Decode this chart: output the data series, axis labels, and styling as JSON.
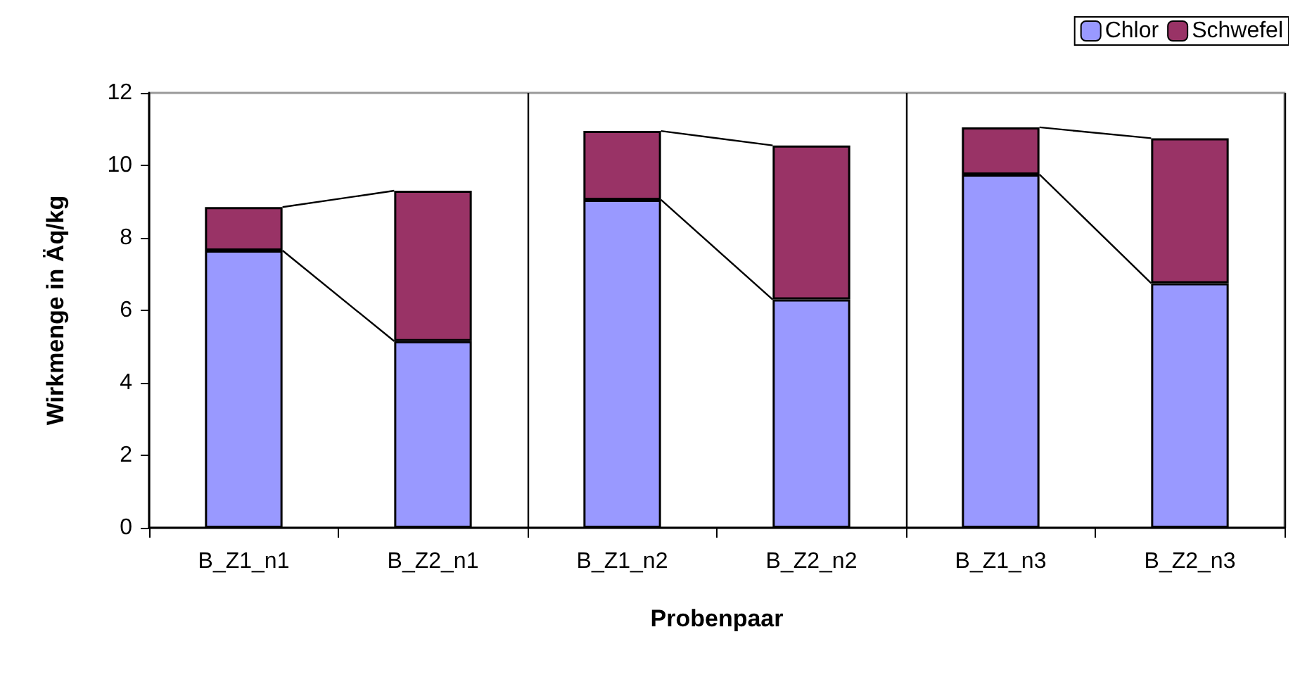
{
  "chart_data": {
    "type": "bar",
    "stacked": true,
    "xlabel": "Probenpaar",
    "ylabel": "Wirkmenge in Äq/kg",
    "categories": [
      "B_Z1_n1",
      "B_Z2_n1",
      "B_Z1_n2",
      "B_Z2_n2",
      "B_Z1_n3",
      "B_Z2_n3"
    ],
    "series": [
      {
        "name": "Chlor",
        "color": "#9999ff",
        "values": [
          7.65,
          5.15,
          9.05,
          6.3,
          9.75,
          6.75
        ]
      },
      {
        "name": "Schwefel",
        "color": "#993366",
        "values": [
          1.2,
          4.15,
          1.9,
          4.25,
          1.3,
          4.0
        ]
      }
    ],
    "ylim": [
      0,
      12
    ],
    "yticks": [
      0,
      2,
      4,
      6,
      8,
      10,
      12
    ],
    "grid": false,
    "legend": "top right"
  }
}
